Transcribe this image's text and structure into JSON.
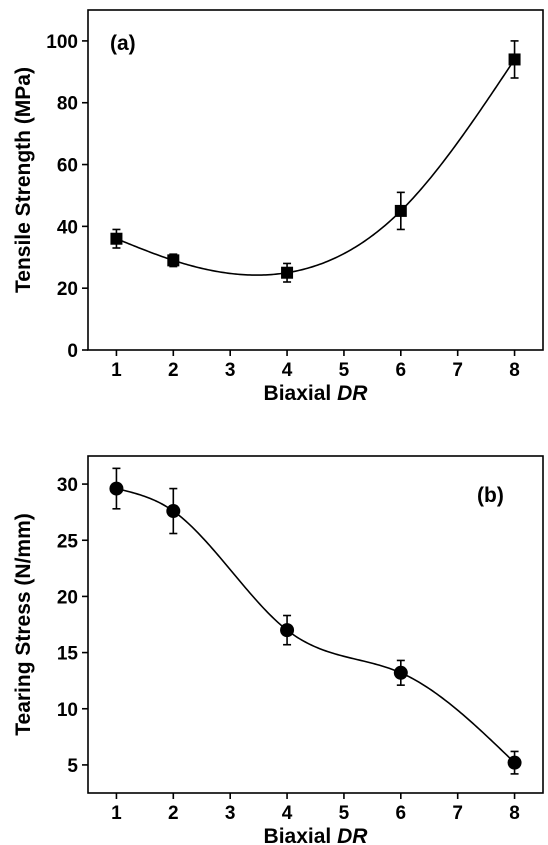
{
  "chart_data": [
    {
      "type": "scatter",
      "panel_label": "(a)",
      "xlabel": "Biaxial",
      "xlabel_italic": "DR",
      "ylabel": "Tensile Strength (MPa)",
      "xlim": [
        0.5,
        8.5
      ],
      "ylim": [
        0,
        110
      ],
      "xticks": [
        1,
        2,
        3,
        4,
        5,
        6,
        7,
        8
      ],
      "yticks": [
        0,
        20,
        40,
        60,
        80,
        100
      ],
      "marker": "square",
      "grid": false,
      "series": [
        {
          "x": [
            1,
            2,
            4,
            6,
            8
          ],
          "y": [
            36,
            29,
            25,
            45,
            94
          ],
          "error": [
            3,
            2,
            3,
            6,
            6
          ],
          "smooth_curve": true
        }
      ]
    },
    {
      "type": "scatter",
      "panel_label": "(b)",
      "xlabel": "Biaxial",
      "xlabel_italic": "DR",
      "ylabel": "Tearing Stress (N/mm)",
      "xlim": [
        0.5,
        8.5
      ],
      "ylim": [
        2.5,
        32.5
      ],
      "xticks": [
        1,
        2,
        3,
        4,
        5,
        6,
        7,
        8
      ],
      "yticks": [
        5,
        10,
        15,
        20,
        25,
        30
      ],
      "marker": "circle",
      "grid": false,
      "series": [
        {
          "x": [
            1,
            2,
            4,
            6,
            8
          ],
          "y": [
            29.6,
            27.6,
            17.0,
            13.2,
            5.2
          ],
          "error": [
            1.8,
            2.0,
            1.3,
            1.1,
            1.0
          ],
          "smooth_curve": true
        }
      ]
    }
  ]
}
